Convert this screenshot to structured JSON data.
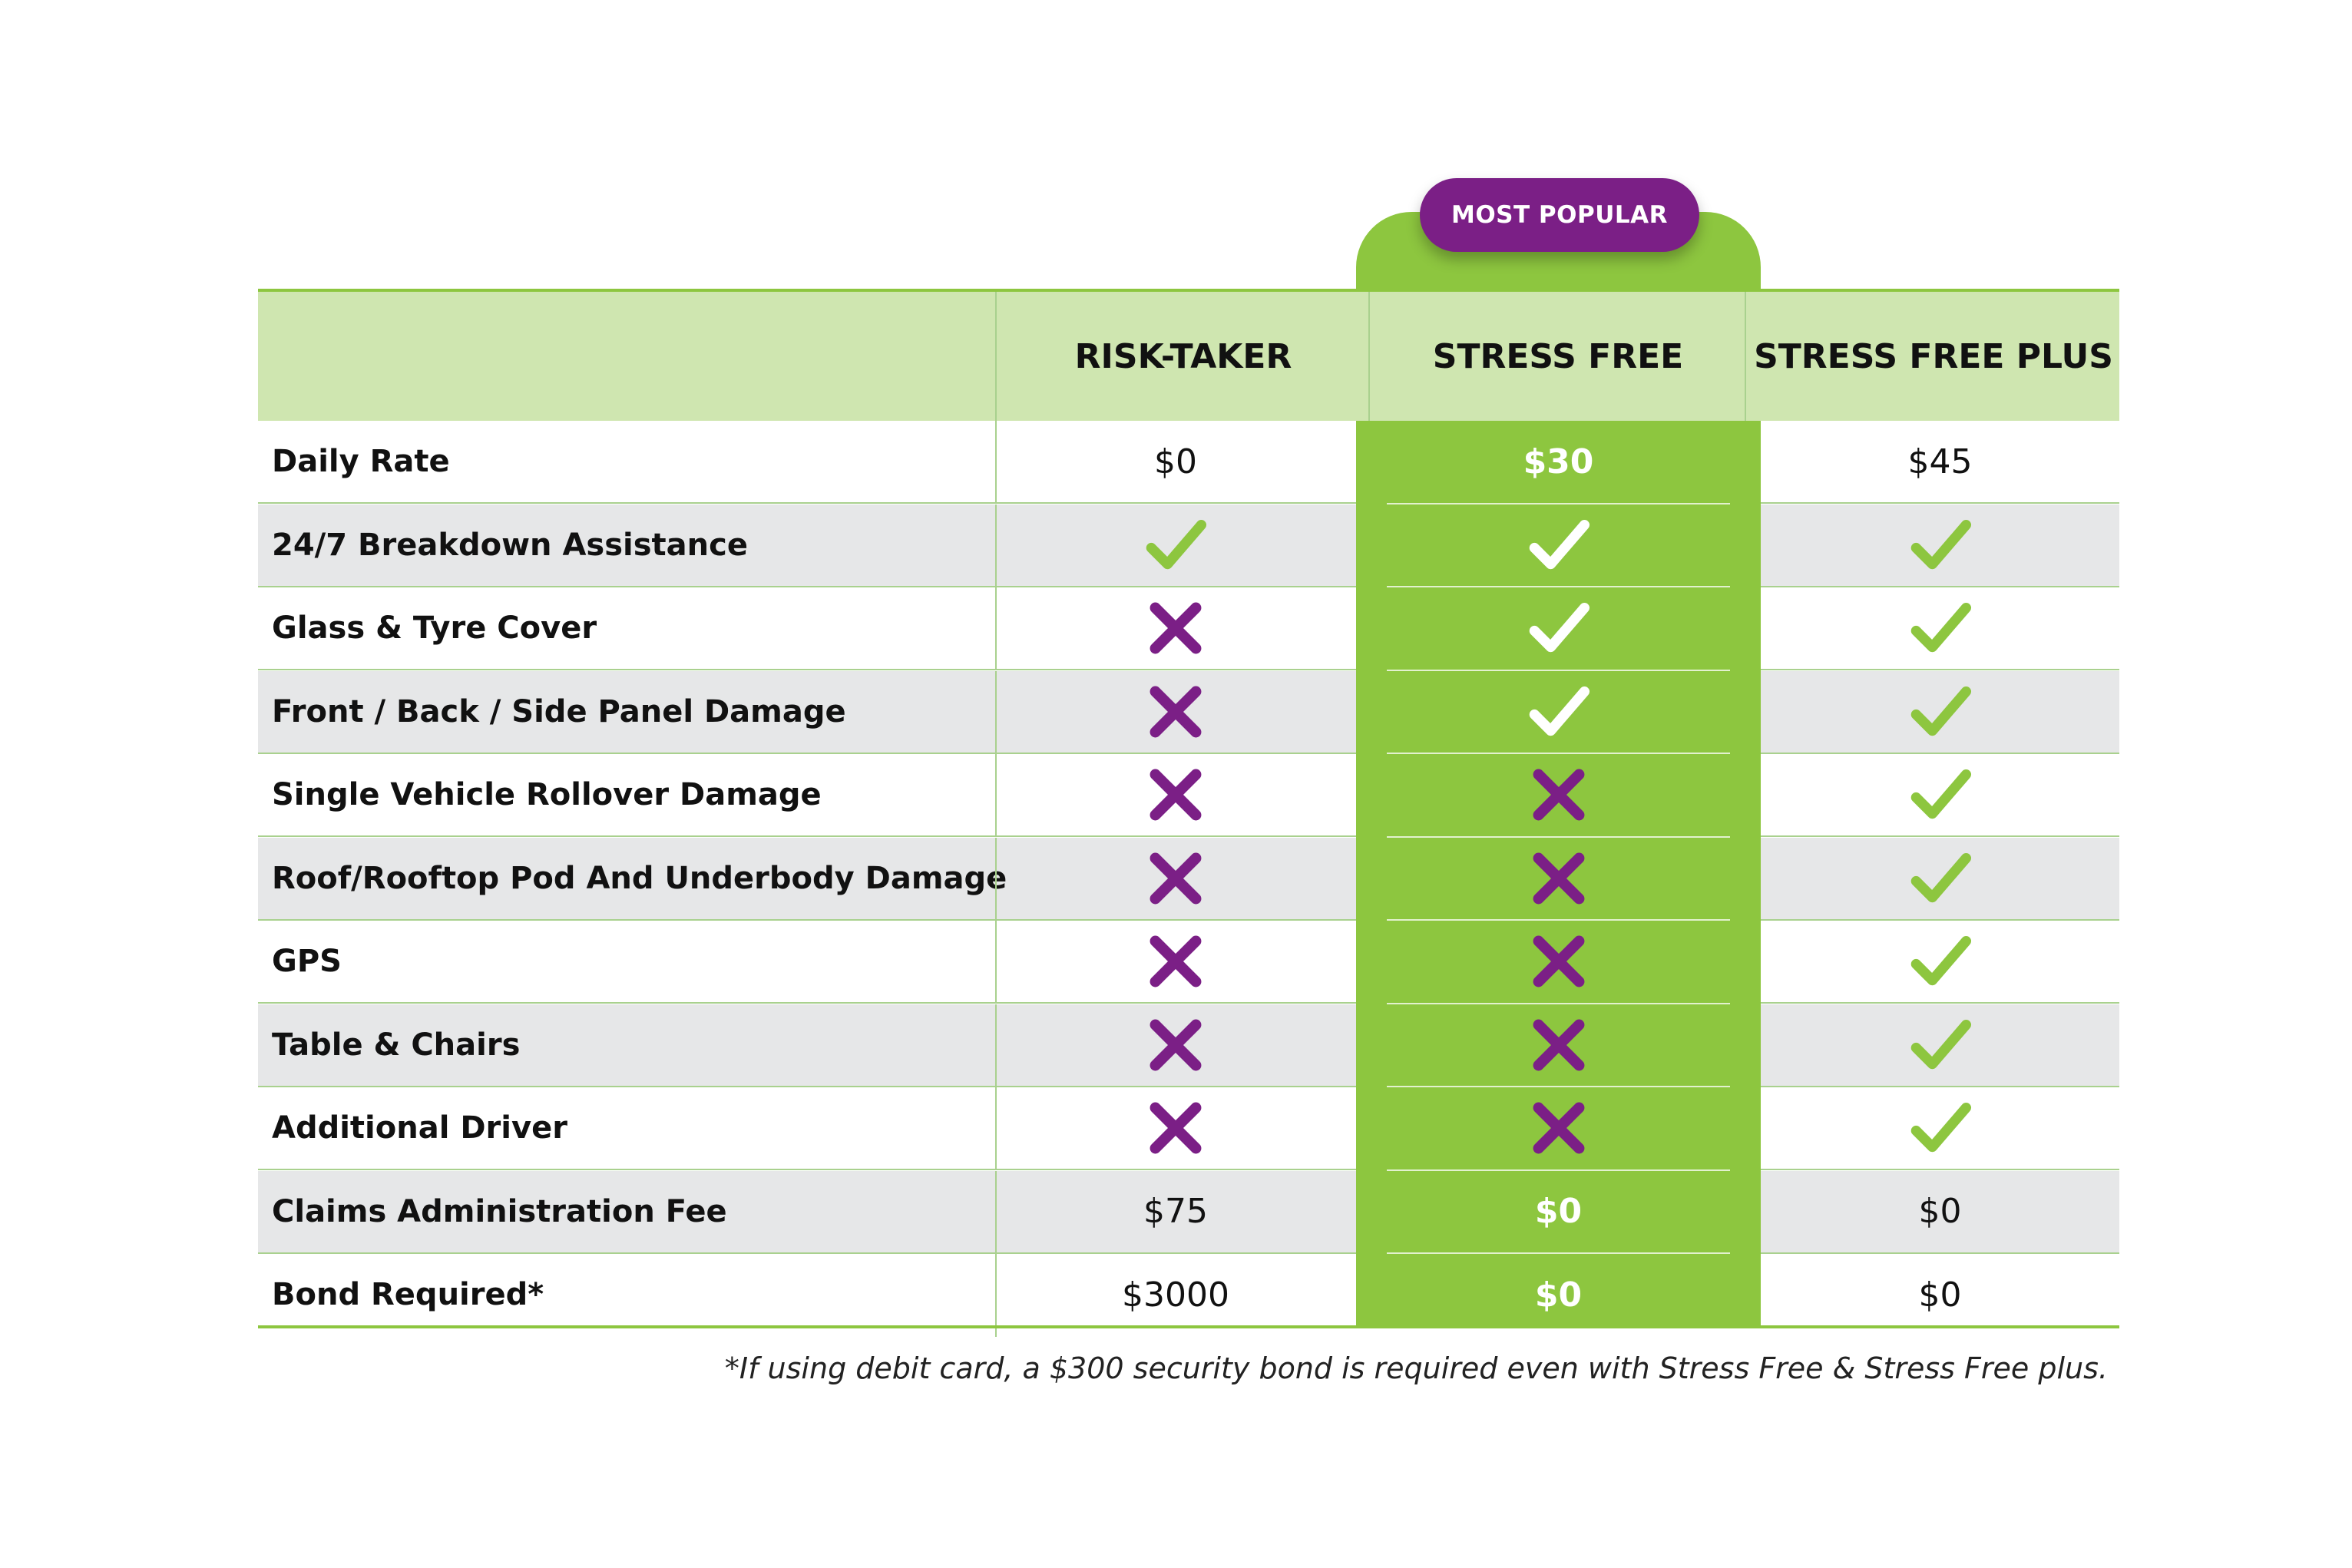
{
  "colors": {
    "green_accent": "#8dc63f",
    "light_green": "#cfe6b0",
    "purple": "#7b1f86",
    "row_alt": "#e6e7e8",
    "divider": "#a9d18e"
  },
  "badge": "MOST POPULAR",
  "columns": [
    "RISK-TAKER",
    "STRESS FREE",
    "STRESS FREE PLUS"
  ],
  "rows": [
    {
      "label": "Daily Rate",
      "values": [
        "$0",
        "$30",
        "$45"
      ]
    },
    {
      "label": "24/7 Breakdown Assistance",
      "values": [
        "check-icon",
        "check-icon",
        "check-icon"
      ]
    },
    {
      "label": "Glass & Tyre Cover",
      "values": [
        "cross-icon",
        "check-icon",
        "check-icon"
      ]
    },
    {
      "label": "Front / Back / Side Panel Damage",
      "values": [
        "cross-icon",
        "check-icon",
        "check-icon"
      ]
    },
    {
      "label": "Single Vehicle Rollover Damage",
      "values": [
        "cross-icon",
        "cross-icon",
        "check-icon"
      ]
    },
    {
      "label": "Roof/Rooftop Pod And Underbody Damage",
      "values": [
        "cross-icon",
        "cross-icon",
        "check-icon"
      ]
    },
    {
      "label": "GPS",
      "values": [
        "cross-icon",
        "cross-icon",
        "check-icon"
      ]
    },
    {
      "label": "Table & Chairs",
      "values": [
        "cross-icon",
        "cross-icon",
        "check-icon"
      ]
    },
    {
      "label": "Additional Driver",
      "values": [
        "cross-icon",
        "cross-icon",
        "check-icon"
      ]
    },
    {
      "label": "Claims Administration Fee",
      "values": [
        "$75",
        "$0",
        "$0"
      ]
    },
    {
      "label": "Bond Required*",
      "values": [
        "$3000",
        "$0",
        "$0"
      ]
    }
  ],
  "footnote": "*If using debit card, a $300 security bond is required even with Stress Free & Stress Free plus."
}
